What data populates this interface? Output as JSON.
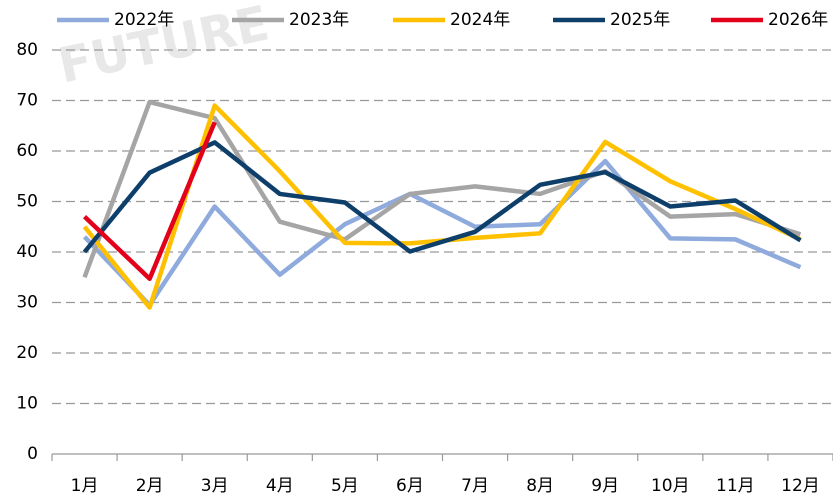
{
  "chart_data": {
    "type": "line",
    "watermark": "FUTURE",
    "categories": [
      "1月",
      "2月",
      "3月",
      "4月",
      "5月",
      "6月",
      "7月",
      "8月",
      "9月",
      "10月",
      "11月",
      "12月"
    ],
    "series": [
      {
        "name": "2022年",
        "color": "#8faadc",
        "values": [
          43,
          29.5,
          49,
          35.5,
          45.5,
          51.5,
          45,
          45.5,
          58,
          42.7,
          42.5,
          37
        ]
      },
      {
        "name": "2023年",
        "color": "#a5a5a5",
        "values": [
          35,
          69.7,
          66.5,
          46,
          42.5,
          51.5,
          53,
          51.5,
          56,
          47,
          47.5,
          43.5
        ]
      },
      {
        "name": "2024年",
        "color": "#ffc000",
        "values": [
          45,
          29,
          69,
          56,
          41.8,
          41.7,
          42.8,
          43.7,
          61.8,
          54,
          48.5,
          42.5
        ]
      },
      {
        "name": "2025年",
        "color": "#0e3f6b",
        "values": [
          40,
          55.7,
          61.7,
          51.5,
          49.8,
          40.1,
          44,
          53.3,
          55.8,
          49,
          50.2,
          42.3
        ]
      },
      {
        "name": "2026年",
        "color": "#e3001b",
        "values": [
          47,
          34.7,
          65.7,
          null,
          null,
          null,
          null,
          null,
          null,
          null,
          null,
          null
        ]
      }
    ],
    "ylim": [
      0,
      80
    ],
    "yticks": [
      0,
      10,
      20,
      30,
      40,
      50,
      60,
      70,
      80
    ],
    "grid": true,
    "legend": "top"
  }
}
